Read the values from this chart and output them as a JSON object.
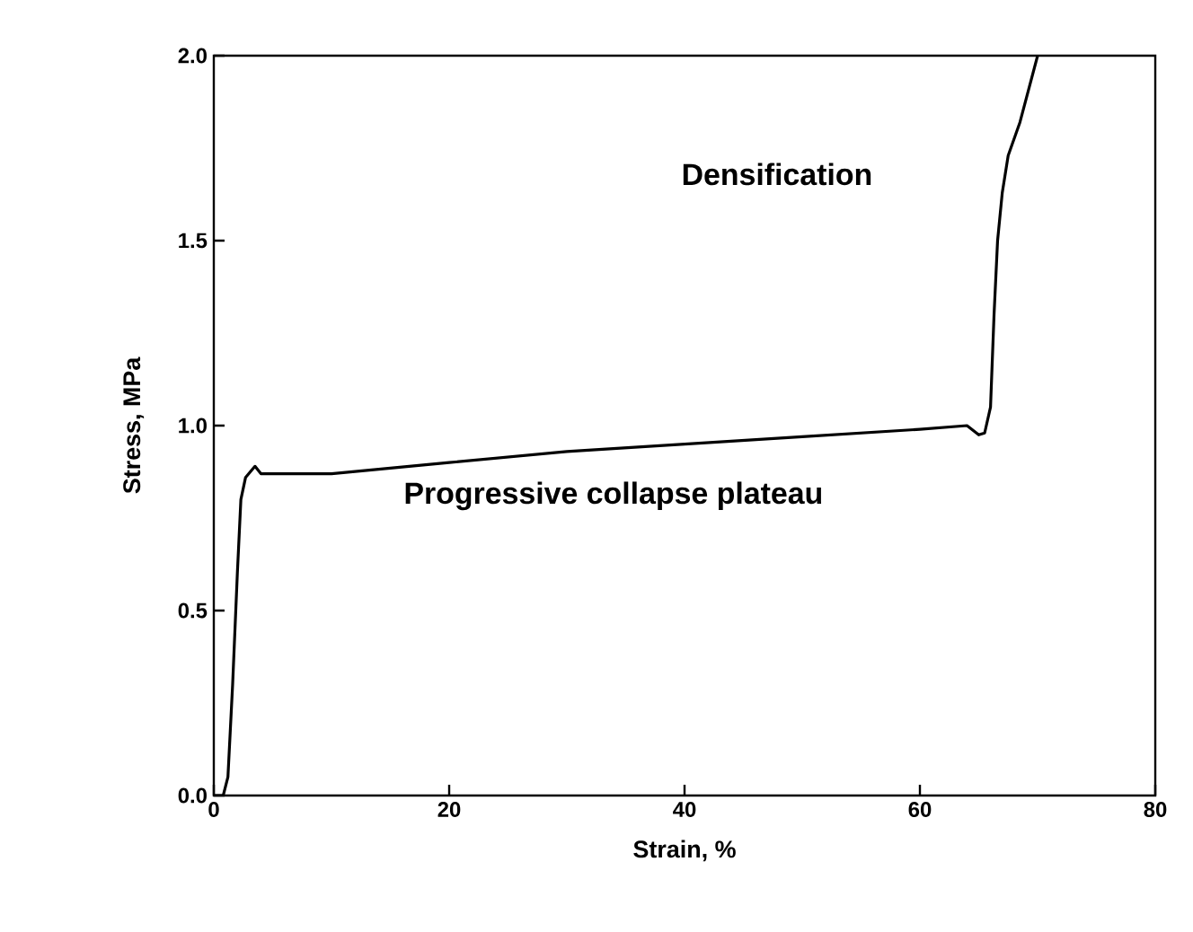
{
  "chart_data": {
    "type": "line",
    "xlabel": "Strain, %",
    "ylabel": "Stress, MPa",
    "annotations": [
      "Densification",
      "Progressive collapse plateau"
    ],
    "xlim": [
      0,
      80
    ],
    "ylim": [
      0,
      2
    ],
    "xticks": [
      0,
      20,
      40,
      60,
      80
    ],
    "yticks": [
      {
        "value": 0,
        "label": "0.0"
      },
      {
        "value": 0.5,
        "label": "0.5"
      },
      {
        "value": 1,
        "label": "1.0"
      },
      {
        "value": 1.5,
        "label": "1.5"
      },
      {
        "value": 2,
        "label": "2.0"
      }
    ],
    "marker": "none",
    "line_style": "solid",
    "series": [
      {
        "color": "#000000",
        "x": [
          0,
          0.8,
          1.2,
          1.6,
          2.0,
          2.3,
          2.7,
          3.5,
          4,
          10,
          20,
          30,
          40,
          50,
          60,
          64,
          65,
          65.5,
          66,
          66.3,
          66.6,
          67,
          67.5,
          68.5,
          70
        ],
        "values": [
          0,
          0,
          0.05,
          0.3,
          0.6,
          0.8,
          0.86,
          0.89,
          0.87,
          0.87,
          0.9,
          0.93,
          0.95,
          0.97,
          0.99,
          1.0,
          0.975,
          0.98,
          1.05,
          1.3,
          1.5,
          1.63,
          1.73,
          1.82,
          2.0
        ]
      }
    ]
  }
}
